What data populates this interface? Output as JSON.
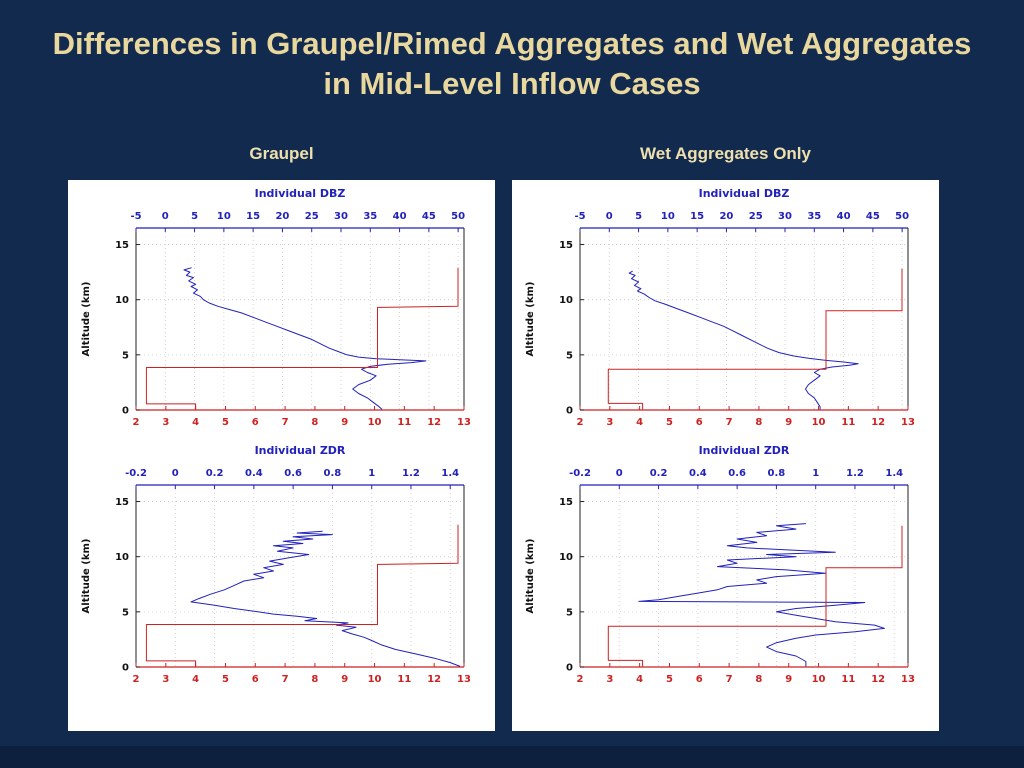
{
  "slide": {
    "title": "Differences in Graupel/Rimed Aggregates and Wet Aggregates in Mid-Level Inflow Cases",
    "columns": [
      {
        "label": "Graupel"
      },
      {
        "label": "Wet Aggregates Only"
      }
    ],
    "colors": {
      "background": "#132a4f",
      "title_text": "#e9d89e",
      "panel": "#ffffff",
      "profile_blue": "#2222bb",
      "profile_red": "#cc2222",
      "grid": "#c9c9c9"
    }
  },
  "chart_data": [
    {
      "type": "line",
      "panel": "Graupel",
      "title": "Individual DBZ",
      "top_axis": {
        "color": "#2222bb",
        "min": -5,
        "max": 51,
        "ticks": [
          -5,
          0,
          5,
          10,
          15,
          20,
          25,
          30,
          35,
          40,
          45,
          50
        ]
      },
      "bottom_axis": {
        "color": "#cc2222",
        "min": 2,
        "max": 13,
        "ticks": [
          2,
          3,
          4,
          5,
          6,
          7,
          8,
          9,
          10,
          11,
          12,
          13
        ]
      },
      "y_axis": {
        "label": "Altitude (km)",
        "min": 0,
        "max": 16.5,
        "ticks": [
          0,
          5,
          10,
          15
        ]
      },
      "grid": true,
      "series": [
        {
          "name": "dbz-profile",
          "color": "#2222bb",
          "axis": "top",
          "points": [
            [
              4.5,
              12.9
            ],
            [
              3.2,
              12.7
            ],
            [
              4.2,
              12.5
            ],
            [
              3.6,
              12.2
            ],
            [
              4.8,
              12.0
            ],
            [
              4.0,
              11.7
            ],
            [
              5.2,
              11.4
            ],
            [
              4.4,
              11.2
            ],
            [
              5.5,
              10.9
            ],
            [
              4.8,
              10.6
            ],
            [
              6.0,
              10.3
            ],
            [
              6.5,
              10.0
            ],
            [
              7.5,
              9.7
            ],
            [
              9.0,
              9.4
            ],
            [
              11.0,
              9.1
            ],
            [
              13.0,
              8.8
            ],
            [
              15.0,
              8.4
            ],
            [
              17.0,
              8.0
            ],
            [
              19.0,
              7.6
            ],
            [
              21.0,
              7.2
            ],
            [
              23.0,
              6.8
            ],
            [
              25.0,
              6.4
            ],
            [
              26.5,
              6.0
            ],
            [
              28.0,
              5.6
            ],
            [
              29.5,
              5.3
            ],
            [
              31.0,
              5.0
            ],
            [
              33.0,
              4.8
            ],
            [
              36.0,
              4.65
            ],
            [
              40.0,
              4.55
            ],
            [
              44.5,
              4.45
            ],
            [
              42.0,
              4.3
            ],
            [
              38.0,
              4.15
            ],
            [
              35.0,
              3.95
            ],
            [
              33.5,
              3.7
            ],
            [
              34.5,
              3.4
            ],
            [
              36.0,
              3.1
            ],
            [
              35.0,
              2.7
            ],
            [
              33.0,
              2.3
            ],
            [
              32.0,
              1.9
            ],
            [
              33.0,
              1.5
            ],
            [
              34.5,
              1.1
            ],
            [
              35.5,
              0.7
            ],
            [
              36.5,
              0.3
            ],
            [
              37.0,
              0.05
            ]
          ]
        },
        {
          "name": "hydrometeor-profile",
          "color": "#cc2222",
          "axis": "bottom",
          "points": [
            [
              12.8,
              12.9
            ],
            [
              12.8,
              9.4
            ],
            [
              10.1,
              9.3
            ],
            [
              10.1,
              3.85
            ],
            [
              2.35,
              3.85
            ],
            [
              2.35,
              0.55
            ],
            [
              4.0,
              0.55
            ],
            [
              4.0,
              0.05
            ]
          ]
        }
      ]
    },
    {
      "type": "line",
      "panel": "Graupel",
      "title": "Individual ZDR",
      "top_axis": {
        "color": "#2222bb",
        "min": -0.2,
        "max": 1.47,
        "ticks": [
          -0.2,
          0,
          0.2,
          0.4,
          0.6,
          0.8,
          1,
          1.2,
          1.4
        ]
      },
      "bottom_axis": {
        "color": "#cc2222",
        "min": 2,
        "max": 13,
        "ticks": [
          2,
          3,
          4,
          5,
          6,
          7,
          8,
          9,
          10,
          11,
          12,
          13
        ]
      },
      "y_axis": {
        "label": "Altitude (km)",
        "min": 0,
        "max": 16.5,
        "ticks": [
          0,
          5,
          10,
          15
        ]
      },
      "grid": true,
      "series": [
        {
          "name": "zdr-profile",
          "color": "#2222bb",
          "axis": "top",
          "points": [
            [
              0.75,
              12.3
            ],
            [
              0.62,
              12.15
            ],
            [
              0.8,
              12.0
            ],
            [
              0.6,
              11.8
            ],
            [
              0.7,
              11.6
            ],
            [
              0.55,
              11.4
            ],
            [
              0.65,
              11.2
            ],
            [
              0.5,
              11.0
            ],
            [
              0.6,
              10.8
            ],
            [
              0.52,
              10.5
            ],
            [
              0.68,
              10.2
            ],
            [
              0.58,
              9.9
            ],
            [
              0.48,
              9.6
            ],
            [
              0.55,
              9.3
            ],
            [
              0.45,
              9.0
            ],
            [
              0.5,
              8.7
            ],
            [
              0.4,
              8.4
            ],
            [
              0.45,
              8.1
            ],
            [
              0.35,
              7.8
            ],
            [
              0.3,
              7.4
            ],
            [
              0.25,
              7.0
            ],
            [
              0.18,
              6.6
            ],
            [
              0.12,
              6.2
            ],
            [
              0.08,
              5.9
            ],
            [
              0.2,
              5.6
            ],
            [
              0.3,
              5.3
            ],
            [
              0.42,
              5.0
            ],
            [
              0.5,
              4.8
            ],
            [
              0.62,
              4.6
            ],
            [
              0.72,
              4.4
            ],
            [
              0.66,
              4.2
            ],
            [
              0.88,
              4.0
            ],
            [
              0.82,
              3.8
            ],
            [
              0.92,
              3.6
            ],
            [
              0.85,
              3.3
            ],
            [
              0.9,
              3.0
            ],
            [
              0.96,
              2.7
            ],
            [
              1.0,
              2.4
            ],
            [
              1.05,
              2.0
            ],
            [
              1.12,
              1.6
            ],
            [
              1.22,
              1.2
            ],
            [
              1.32,
              0.8
            ],
            [
              1.4,
              0.4
            ],
            [
              1.45,
              0.05
            ]
          ]
        },
        {
          "name": "hydrometeor-profile",
          "color": "#cc2222",
          "axis": "bottom",
          "points": [
            [
              12.8,
              12.9
            ],
            [
              12.8,
              9.4
            ],
            [
              10.1,
              9.3
            ],
            [
              10.1,
              3.85
            ],
            [
              2.35,
              3.85
            ],
            [
              2.35,
              0.55
            ],
            [
              4.0,
              0.55
            ],
            [
              4.0,
              0.05
            ]
          ]
        }
      ]
    },
    {
      "type": "line",
      "panel": "Wet Aggregates Only",
      "title": "Individual DBZ",
      "top_axis": {
        "color": "#2222bb",
        "min": -5,
        "max": 51,
        "ticks": [
          -5,
          0,
          5,
          10,
          15,
          20,
          25,
          30,
          35,
          40,
          45,
          50
        ]
      },
      "bottom_axis": {
        "color": "#cc2222",
        "min": 2,
        "max": 13,
        "ticks": [
          2,
          3,
          4,
          5,
          6,
          7,
          8,
          9,
          10,
          11,
          12,
          13
        ]
      },
      "y_axis": {
        "label": "Altitude (km)",
        "min": 0,
        "max": 16.5,
        "ticks": [
          0,
          5,
          10,
          15
        ]
      },
      "grid": true,
      "series": [
        {
          "name": "dbz-profile",
          "color": "#2222bb",
          "axis": "top",
          "points": [
            [
              4.0,
              12.6
            ],
            [
              3.4,
              12.4
            ],
            [
              4.4,
              12.2
            ],
            [
              3.8,
              11.9
            ],
            [
              5.0,
              11.6
            ],
            [
              4.3,
              11.3
            ],
            [
              5.4,
              11.0
            ],
            [
              4.8,
              10.8
            ],
            [
              6.0,
              10.5
            ],
            [
              6.8,
              10.2
            ],
            [
              7.8,
              9.9
            ],
            [
              9.5,
              9.6
            ],
            [
              11.5,
              9.2
            ],
            [
              13.5,
              8.8
            ],
            [
              15.5,
              8.4
            ],
            [
              17.5,
              8.0
            ],
            [
              19.5,
              7.6
            ],
            [
              21.0,
              7.2
            ],
            [
              22.5,
              6.8
            ],
            [
              24.0,
              6.4
            ],
            [
              25.5,
              6.0
            ],
            [
              27.0,
              5.6
            ],
            [
              29.0,
              5.2
            ],
            [
              31.5,
              4.9
            ],
            [
              34.0,
              4.7
            ],
            [
              37.0,
              4.5
            ],
            [
              40.0,
              4.35
            ],
            [
              42.5,
              4.2
            ],
            [
              41.0,
              4.05
            ],
            [
              38.0,
              3.9
            ],
            [
              36.0,
              3.7
            ],
            [
              35.0,
              3.4
            ],
            [
              36.0,
              3.1
            ],
            [
              35.0,
              2.7
            ],
            [
              34.0,
              2.3
            ],
            [
              33.5,
              1.9
            ],
            [
              34.0,
              1.5
            ],
            [
              35.0,
              1.1
            ],
            [
              35.5,
              0.7
            ],
            [
              36.0,
              0.3
            ],
            [
              36.0,
              0.05
            ]
          ]
        },
        {
          "name": "hydrometeor-profile",
          "color": "#cc2222",
          "axis": "bottom",
          "points": [
            [
              12.8,
              12.8
            ],
            [
              12.8,
              9.0
            ],
            [
              10.25,
              9.0
            ],
            [
              10.25,
              3.7
            ],
            [
              2.95,
              3.7
            ],
            [
              2.95,
              0.6
            ],
            [
              4.1,
              0.6
            ],
            [
              4.1,
              0.05
            ]
          ]
        }
      ]
    },
    {
      "type": "line",
      "panel": "Wet Aggregates Only",
      "title": "Individual ZDR",
      "top_axis": {
        "color": "#2222bb",
        "min": -0.2,
        "max": 1.47,
        "ticks": [
          -0.2,
          0,
          0.2,
          0.4,
          0.6,
          0.8,
          1,
          1.2,
          1.4
        ]
      },
      "bottom_axis": {
        "color": "#cc2222",
        "min": 2,
        "max": 13,
        "ticks": [
          2,
          3,
          4,
          5,
          6,
          7,
          8,
          9,
          10,
          11,
          12,
          13
        ]
      },
      "y_axis": {
        "label": "Altitude (km)",
        "min": 0,
        "max": 16.5,
        "ticks": [
          0,
          5,
          10,
          15
        ]
      },
      "grid": true,
      "series": [
        {
          "name": "zdr-profile",
          "color": "#2222bb",
          "axis": "top",
          "points": [
            [
              0.95,
              13.0
            ],
            [
              0.8,
              12.8
            ],
            [
              0.9,
              12.5
            ],
            [
              0.7,
              12.2
            ],
            [
              0.75,
              11.9
            ],
            [
              0.6,
              11.6
            ],
            [
              0.7,
              11.3
            ],
            [
              0.55,
              11.0
            ],
            [
              0.65,
              10.8
            ],
            [
              1.1,
              10.4
            ],
            [
              0.75,
              10.2
            ],
            [
              0.9,
              10.0
            ],
            [
              0.55,
              9.7
            ],
            [
              0.6,
              9.4
            ],
            [
              0.5,
              9.1
            ],
            [
              0.85,
              8.8
            ],
            [
              1.05,
              8.5
            ],
            [
              0.8,
              8.2
            ],
            [
              0.7,
              7.9
            ],
            [
              0.75,
              7.6
            ],
            [
              0.55,
              7.3
            ],
            [
              0.5,
              7.0
            ],
            [
              0.4,
              6.7
            ],
            [
              0.3,
              6.4
            ],
            [
              0.2,
              6.1
            ],
            [
              0.1,
              5.95
            ],
            [
              1.25,
              5.85
            ],
            [
              1.1,
              5.6
            ],
            [
              0.9,
              5.3
            ],
            [
              0.8,
              5.0
            ],
            [
              0.9,
              4.7
            ],
            [
              1.0,
              4.4
            ],
            [
              1.1,
              4.1
            ],
            [
              1.3,
              3.8
            ],
            [
              1.35,
              3.5
            ],
            [
              1.2,
              3.2
            ],
            [
              1.0,
              2.9
            ],
            [
              0.9,
              2.6
            ],
            [
              0.8,
              2.2
            ],
            [
              0.75,
              1.8
            ],
            [
              0.8,
              1.4
            ],
            [
              0.9,
              1.0
            ],
            [
              0.95,
              0.5
            ],
            [
              0.95,
              0.05
            ]
          ]
        },
        {
          "name": "hydrometeor-profile",
          "color": "#cc2222",
          "axis": "bottom",
          "points": [
            [
              12.8,
              12.8
            ],
            [
              12.8,
              9.0
            ],
            [
              10.25,
              9.0
            ],
            [
              10.25,
              3.7
            ],
            [
              2.95,
              3.7
            ],
            [
              2.95,
              0.6
            ],
            [
              4.1,
              0.6
            ],
            [
              4.1,
              0.05
            ]
          ]
        }
      ]
    }
  ]
}
